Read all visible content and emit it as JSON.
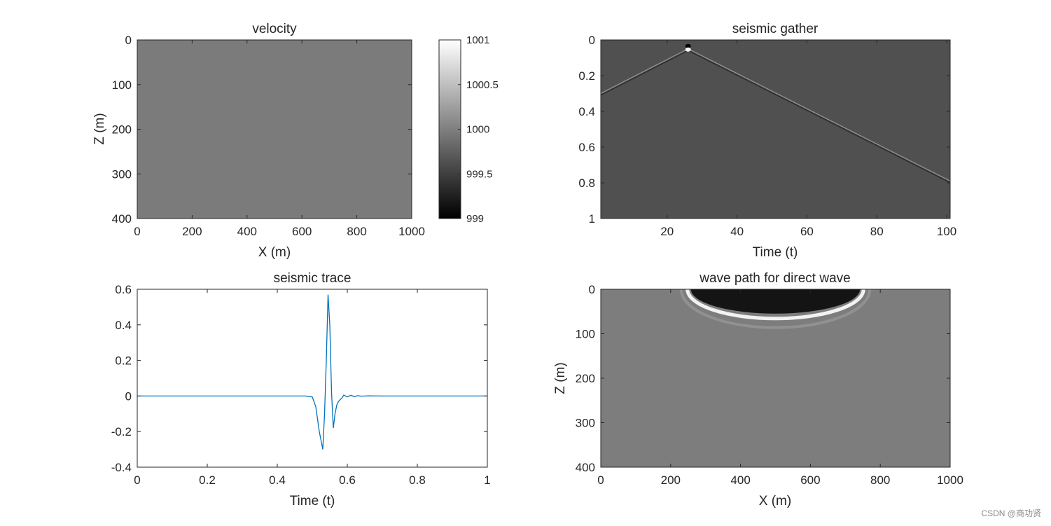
{
  "chart_data": [
    {
      "id": "velocity",
      "type": "heatmap",
      "title": "velocity",
      "xlabel": "X (m)",
      "ylabel": "Z (m)",
      "xlim": [
        0,
        1000
      ],
      "ylim": [
        0,
        400
      ],
      "y_reversed": true,
      "xticks": [
        0,
        200,
        400,
        600,
        800,
        1000
      ],
      "yticks": [
        0,
        100,
        200,
        300,
        400
      ],
      "colormap": "gray",
      "fill_value": 1000,
      "fill_color": "#7b7b7b",
      "colorbar": {
        "range": [
          999,
          1001
        ],
        "ticks": [
          1001,
          1000.5,
          1000,
          999.5,
          999
        ],
        "tick_labels": [
          "1001",
          "1000.5",
          "1000",
          "999.5",
          "999"
        ]
      }
    },
    {
      "id": "seismic-gather",
      "type": "heatmap",
      "title": "seismic gather",
      "xlabel": "Time (t)",
      "ylabel": "",
      "xlim": [
        1,
        101
      ],
      "ylim": [
        0,
        1
      ],
      "y_reversed": true,
      "xticks": [
        20,
        40,
        60,
        80,
        100
      ],
      "yticks": [
        0,
        0.2,
        0.4,
        0.6,
        0.8,
        1
      ],
      "ytick_labels": [
        "0",
        "0.2",
        "0.4",
        "0.6",
        "0.8",
        "1"
      ],
      "colormap": "gray",
      "background_color": "#505050",
      "events": [
        {
          "name": "direct-wave-left",
          "points": [
            [
              1,
              0.3
            ],
            [
              26,
              0.05
            ]
          ]
        },
        {
          "name": "direct-wave-right",
          "points": [
            [
              26,
              0.05
            ],
            [
              101,
              0.79
            ]
          ]
        }
      ],
      "source": [
        26,
        0.05
      ]
    },
    {
      "id": "seismic-trace",
      "type": "line",
      "title": "seismic trace",
      "xlabel": "Time (t)",
      "ylabel": "",
      "xlim": [
        0,
        1
      ],
      "ylim": [
        -0.4,
        0.6
      ],
      "xticks": [
        0,
        0.2,
        0.4,
        0.6,
        0.8,
        1
      ],
      "yticks": [
        -0.4,
        -0.2,
        0,
        0.2,
        0.4,
        0.6
      ],
      "line_color": "#0072bd",
      "x": [
        0,
        0.48,
        0.5,
        0.51,
        0.52,
        0.53,
        0.535,
        0.54,
        0.545,
        0.55,
        0.555,
        0.56,
        0.565,
        0.57,
        0.575,
        0.58,
        0.585,
        0.59,
        0.6,
        0.61,
        0.62,
        0.63,
        0.64,
        0.66,
        0.7,
        1.0
      ],
      "y": [
        0,
        0,
        -0.005,
        -0.06,
        -0.2,
        -0.3,
        -0.1,
        0.2,
        0.57,
        0.4,
        0.02,
        -0.18,
        -0.1,
        -0.05,
        -0.03,
        -0.02,
        -0.01,
        0.005,
        -0.005,
        0.004,
        -0.003,
        0.002,
        -0.001,
        0.001,
        0,
        0
      ]
    },
    {
      "id": "wave-path",
      "type": "heatmap",
      "title": "wave path for direct wave",
      "xlabel": "X (m)",
      "ylabel": "Z (m)",
      "xlim": [
        0,
        1000
      ],
      "ylim": [
        0,
        400
      ],
      "y_reversed": true,
      "xticks": [
        0,
        200,
        400,
        600,
        800,
        1000
      ],
      "yticks": [
        0,
        100,
        200,
        300,
        400
      ],
      "colormap": "gray",
      "background_color": "#7d7d7d",
      "path_x_range": [
        250,
        750
      ],
      "path_depth": 80
    }
  ],
  "watermark": "CSDN @商功贤"
}
